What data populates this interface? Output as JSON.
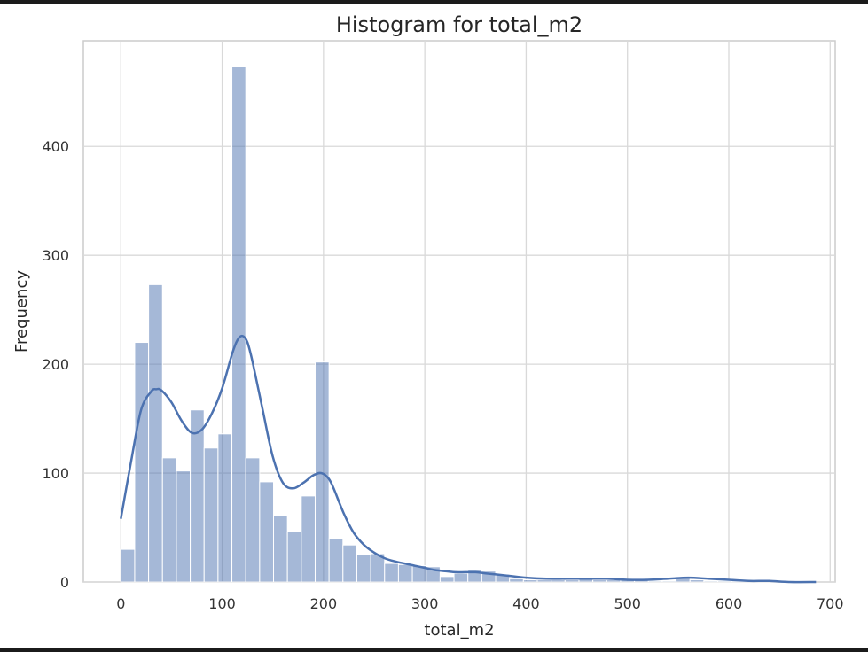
{
  "chart_data": {
    "type": "bar",
    "title": "Histogram for total_m2",
    "xlabel": "total_m2",
    "ylabel": "Frequency",
    "xlim": [
      -37,
      705
    ],
    "ylim": [
      0,
      497
    ],
    "xticks": [
      0,
      100,
      200,
      300,
      400,
      500,
      600,
      700
    ],
    "yticks": [
      0,
      100,
      200,
      300,
      400
    ],
    "grid": true,
    "bin_width": 13.7,
    "bins_start": 0,
    "bar_color": "#4c72b0",
    "bar_opacity": 0.5,
    "kde_color": "#4c72b0",
    "series": [
      {
        "values": [
          30,
          220,
          273,
          114,
          102,
          158,
          123,
          136,
          473,
          114,
          92,
          61,
          46,
          79,
          202,
          40,
          34,
          25,
          26,
          17,
          16,
          15,
          14,
          5,
          8,
          11,
          10,
          7,
          3,
          2,
          2,
          2,
          2,
          4,
          2,
          2,
          2,
          2,
          1,
          1,
          4,
          2,
          1,
          1,
          1,
          1,
          1,
          1,
          1,
          1
        ]
      }
    ],
    "kde": {
      "x": [
        0,
        10,
        20,
        30,
        35,
        40,
        50,
        60,
        70,
        80,
        90,
        100,
        110,
        115,
        120,
        125,
        130,
        140,
        150,
        160,
        170,
        180,
        190,
        198,
        205,
        210,
        220,
        230,
        240,
        250,
        260,
        270,
        280,
        290,
        300,
        310,
        320,
        330,
        340,
        350,
        360,
        370,
        380,
        400,
        420,
        440,
        460,
        480,
        500,
        520,
        540,
        560,
        580,
        600,
        620,
        640,
        660,
        686
      ],
      "y": [
        58,
        110,
        158,
        175,
        177,
        176,
        165,
        148,
        137,
        140,
        155,
        178,
        210,
        222,
        226,
        220,
        202,
        158,
        115,
        91,
        86,
        91,
        98,
        100,
        95,
        86,
        63,
        45,
        34,
        27,
        22,
        19,
        17,
        15,
        13,
        11,
        10,
        9,
        9,
        9,
        8,
        7,
        6,
        4,
        3,
        3,
        3,
        3,
        2,
        2,
        3,
        4,
        3,
        2,
        1,
        1,
        0,
        0
      ]
    }
  }
}
